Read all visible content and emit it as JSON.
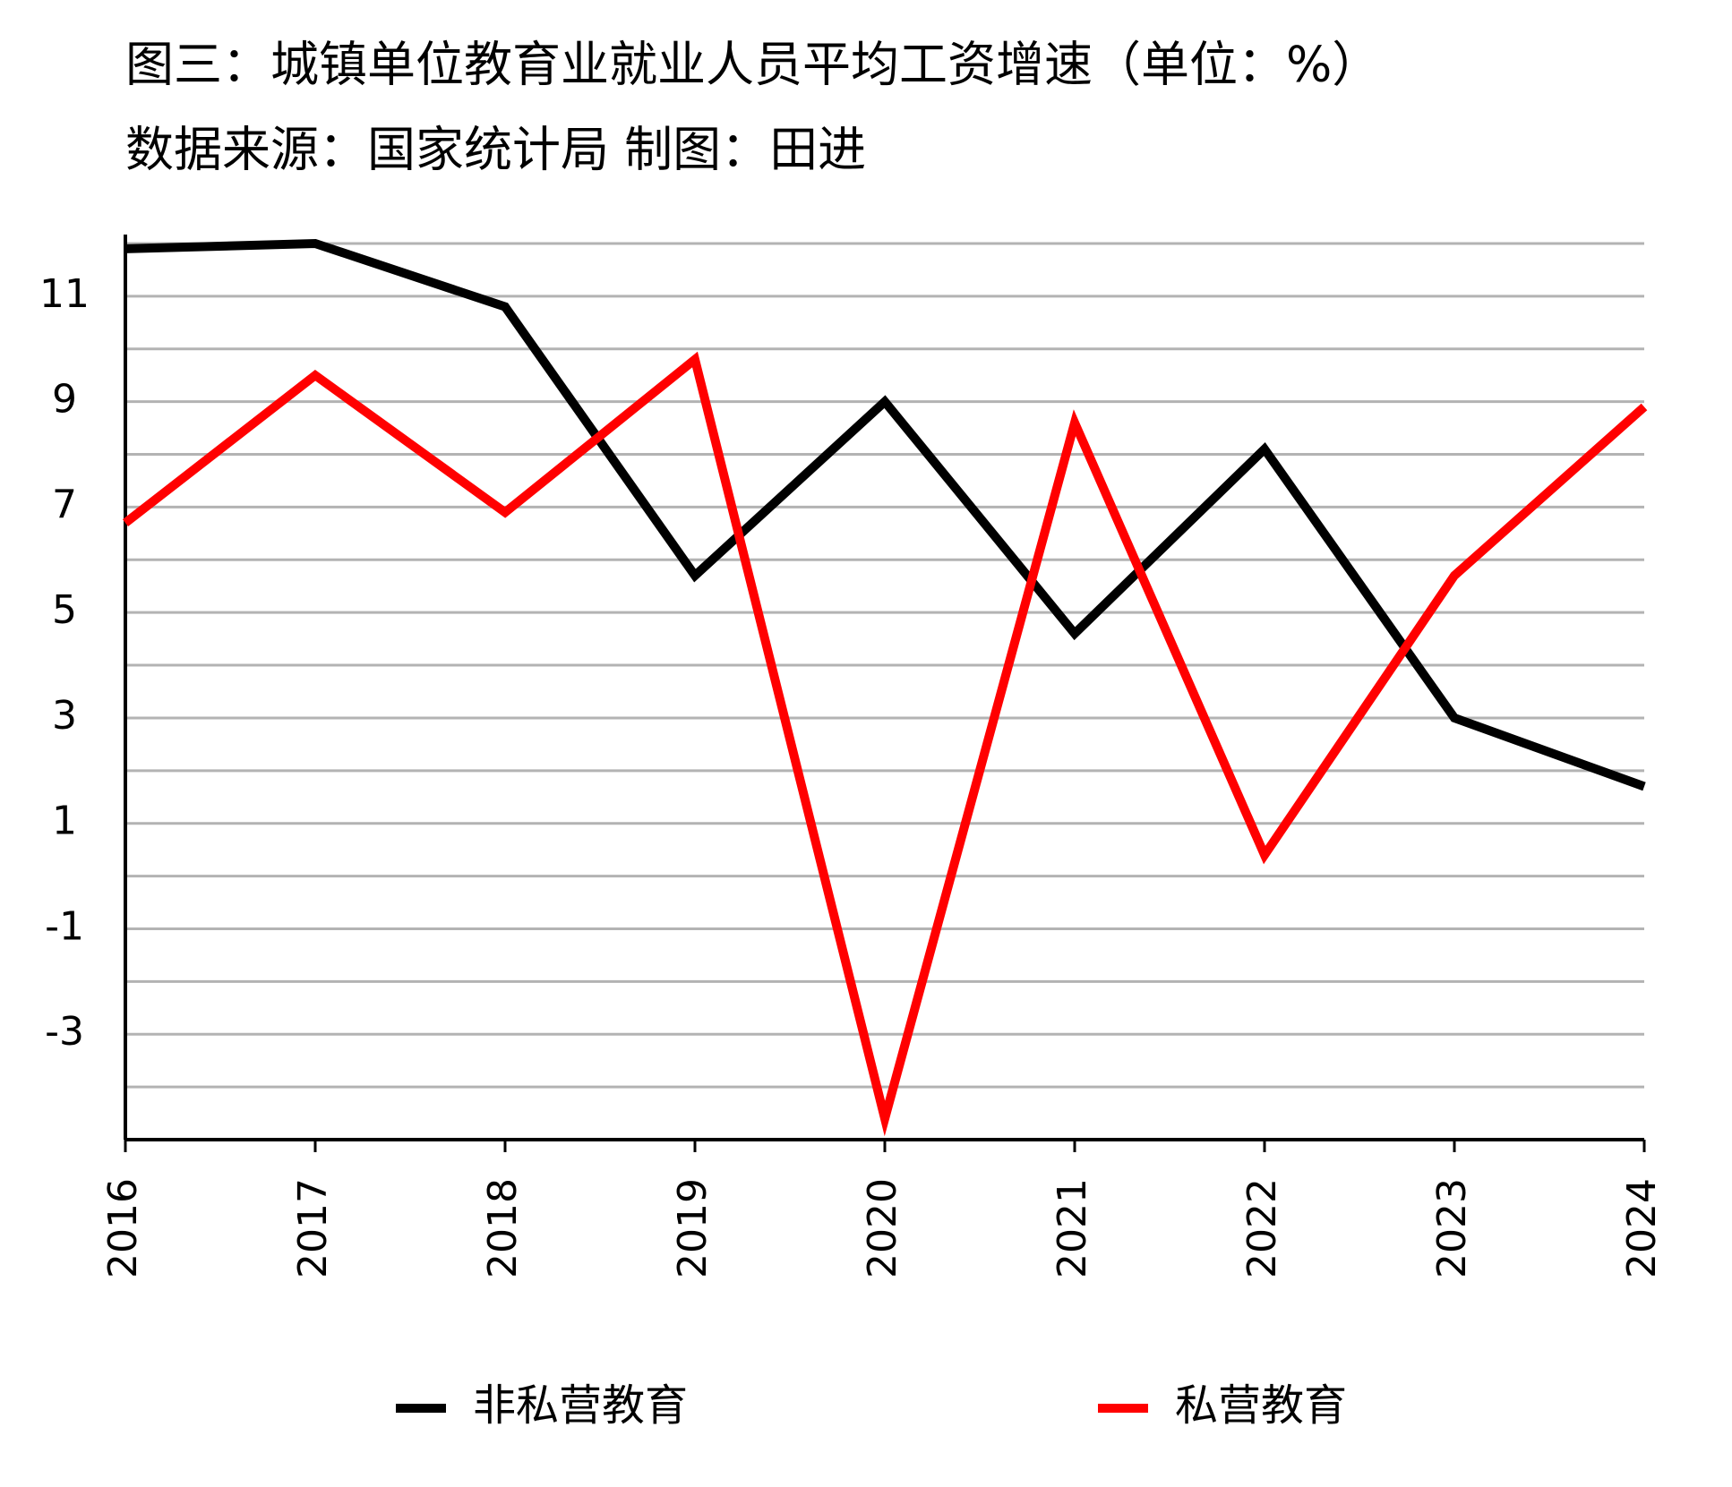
{
  "chart_data": {
    "type": "line",
    "title": "图三：城镇单位教育业就业人员平均工资增速（单位：%）",
    "subtitle": "数据来源：国家统计局 制图：田进",
    "categories": [
      "2016",
      "2017",
      "2018",
      "2019",
      "2020",
      "2021",
      "2022",
      "2023",
      "2024"
    ],
    "series": [
      {
        "name": "非私营教育",
        "color": "#000000",
        "values": [
          11.9,
          12.0,
          10.8,
          5.7,
          9.0,
          4.6,
          8.1,
          3.0,
          1.7
        ]
      },
      {
        "name": "私营教育",
        "color": "#ff0000",
        "values": [
          6.7,
          9.5,
          6.9,
          9.8,
          -4.6,
          8.6,
          0.4,
          5.7,
          8.9
        ]
      }
    ],
    "ylim": [
      -5,
      12
    ],
    "yticks": [
      -3,
      -1,
      1,
      3,
      5,
      7,
      9,
      11
    ],
    "grid_ticks": [
      -4,
      -3,
      -2,
      -1,
      0,
      1,
      2,
      3,
      4,
      5,
      6,
      7,
      8,
      9,
      10,
      11,
      12
    ],
    "grid": true,
    "legend": "bottom"
  }
}
